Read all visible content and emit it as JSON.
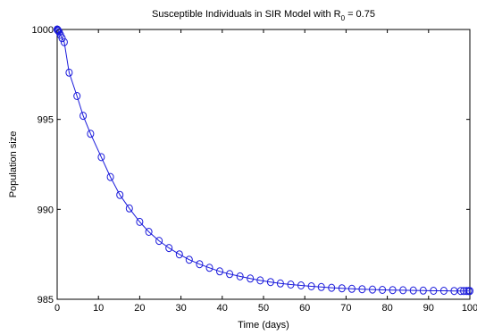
{
  "chart_data": {
    "type": "line",
    "title": "Susceptible Individuals in SIR Model with R",
    "title_subscript": "0",
    "title_suffix": " = 0.75",
    "xlabel": "Time (days)",
    "ylabel": "Population size",
    "xlim": [
      0,
      100
    ],
    "ylim": [
      985,
      1000
    ],
    "xticks": [
      0,
      10,
      20,
      30,
      40,
      50,
      60,
      70,
      80,
      90,
      100
    ],
    "yticks": [
      985,
      990,
      995,
      1000
    ],
    "grid": false,
    "marker": "circle",
    "color": "#1a1adb",
    "series": [
      {
        "x": [
          0,
          0.05,
          0.1,
          0.2,
          0.3,
          0.5,
          0.8,
          1.2,
          1.7,
          2.9,
          4.8,
          6.3,
          8.1,
          10.7,
          12.9,
          15.2,
          17.5,
          20.0,
          22.2,
          24.7,
          27.1,
          29.6,
          32.0,
          34.5,
          36.9,
          39.4,
          41.8,
          44.3,
          46.8,
          49.2,
          51.7,
          54.1,
          56.6,
          59.1,
          61.6,
          64.0,
          66.5,
          69.0,
          71.4,
          73.9,
          76.4,
          78.8,
          81.3,
          83.8,
          86.3,
          88.7,
          91.2,
          93.7,
          96.2,
          97.8,
          98.5,
          99.2,
          99.7,
          100.0
        ],
        "y": [
          1000.0,
          999.99,
          999.98,
          999.95,
          999.92,
          999.85,
          999.7,
          999.52,
          999.3,
          997.6,
          996.3,
          995.2,
          994.2,
          992.9,
          991.8,
          990.8,
          990.05,
          989.3,
          988.75,
          988.25,
          987.85,
          987.5,
          987.2,
          986.95,
          986.75,
          986.55,
          986.4,
          986.27,
          986.15,
          986.05,
          985.96,
          985.88,
          985.82,
          985.77,
          985.72,
          985.68,
          985.64,
          985.61,
          985.58,
          985.56,
          985.54,
          985.52,
          985.51,
          985.5,
          985.49,
          985.48,
          985.47,
          985.47,
          985.46,
          985.46,
          985.46,
          985.46,
          985.46,
          985.46
        ]
      }
    ]
  }
}
